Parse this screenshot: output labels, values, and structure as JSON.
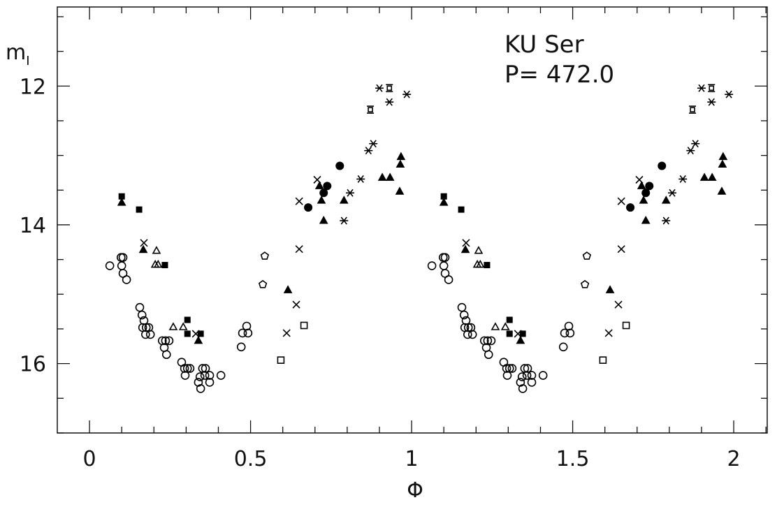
{
  "chart_data": {
    "type": "scatter",
    "title": "",
    "annotations": [
      "KU Ser",
      "P= 472.0"
    ],
    "xlabel": "Φ",
    "ylabel": "m",
    "ylabel_sub": "I",
    "xlim": [
      -0.1,
      2.104
    ],
    "ylim": [
      10.86,
      17.0
    ],
    "y_inverted": true,
    "x_ticks": [
      0,
      0.5,
      1,
      1.5,
      2
    ],
    "x_tick_labels": [
      "0",
      "0.5",
      "1",
      "1.5",
      "2"
    ],
    "y_ticks": [
      12,
      14,
      16
    ],
    "y_tick_labels": [
      "12",
      "14",
      "16"
    ],
    "x_minor_step": 0.1,
    "y_minor_step": 0.5,
    "grid": false,
    "phase_repeat": [
      0,
      1
    ],
    "series": [
      {
        "name": "open-circle",
        "marker": "circle-open",
        "points": [
          [
            0.063,
            14.59
          ],
          [
            0.098,
            14.47
          ],
          [
            0.104,
            14.47
          ],
          [
            0.1,
            14.59
          ],
          [
            0.104,
            14.7
          ],
          [
            0.115,
            14.79
          ],
          [
            0.156,
            15.19
          ],
          [
            0.163,
            15.3
          ],
          [
            0.169,
            15.38
          ],
          [
            0.165,
            15.48
          ],
          [
            0.176,
            15.48
          ],
          [
            0.184,
            15.48
          ],
          [
            0.174,
            15.58
          ],
          [
            0.189,
            15.58
          ],
          [
            0.226,
            15.67
          ],
          [
            0.236,
            15.67
          ],
          [
            0.247,
            15.67
          ],
          [
            0.232,
            15.77
          ],
          [
            0.239,
            15.87
          ],
          [
            0.286,
            15.98
          ],
          [
            0.295,
            16.07
          ],
          [
            0.304,
            16.07
          ],
          [
            0.312,
            16.07
          ],
          [
            0.297,
            16.17
          ],
          [
            0.343,
            16.19
          ],
          [
            0.351,
            16.07
          ],
          [
            0.36,
            16.07
          ],
          [
            0.358,
            16.17
          ],
          [
            0.373,
            16.17
          ],
          [
            0.338,
            16.27
          ],
          [
            0.345,
            16.36
          ],
          [
            0.373,
            16.27
          ],
          [
            0.408,
            16.17
          ],
          [
            0.488,
            15.46
          ],
          [
            0.475,
            15.56
          ],
          [
            0.492,
            15.56
          ],
          [
            0.471,
            15.76
          ]
        ]
      },
      {
        "name": "open-triangle",
        "marker": "triangle-open",
        "points": [
          [
            0.208,
            14.37
          ],
          [
            0.204,
            14.57
          ],
          [
            0.213,
            14.57
          ],
          [
            0.26,
            15.47
          ],
          [
            0.291,
            15.47
          ]
        ]
      },
      {
        "name": "filled-square",
        "marker": "square-filled",
        "points": [
          [
            0.1,
            13.59
          ],
          [
            0.154,
            13.78
          ],
          [
            0.234,
            14.58
          ],
          [
            0.304,
            15.37
          ],
          [
            0.304,
            15.57
          ],
          [
            0.345,
            15.57
          ]
        ]
      },
      {
        "name": "filled-triangle",
        "marker": "triangle-filled",
        "points": [
          [
            0.1,
            13.68
          ],
          [
            0.167,
            14.36
          ],
          [
            0.338,
            15.67
          ],
          [
            0.616,
            14.94
          ],
          [
            0.727,
            13.94
          ],
          [
            0.72,
            13.65
          ],
          [
            0.79,
            13.65
          ],
          [
            0.909,
            13.32
          ],
          [
            0.933,
            13.32
          ],
          [
            0.967,
            13.02
          ],
          [
            0.965,
            13.13
          ],
          [
            0.963,
            13.52
          ],
          [
            0.714,
            13.44
          ]
        ]
      },
      {
        "name": "filled-circle",
        "marker": "circle-filled",
        "points": [
          [
            0.777,
            13.15
          ],
          [
            0.738,
            13.44
          ],
          [
            0.727,
            13.54
          ],
          [
            0.679,
            13.75
          ]
        ]
      },
      {
        "name": "cross",
        "marker": "x",
        "points": [
          [
            0.707,
            13.35
          ],
          [
            0.651,
            13.66
          ],
          [
            0.651,
            14.35
          ],
          [
            0.642,
            15.15
          ],
          [
            0.612,
            15.56
          ],
          [
            0.169,
            14.26
          ],
          [
            0.33,
            15.57
          ]
        ]
      },
      {
        "name": "asterisk",
        "marker": "asterisk",
        "points": [
          [
            0.9,
            12.03
          ],
          [
            0.931,
            12.23
          ],
          [
            0.985,
            12.12
          ],
          [
            0.881,
            12.83
          ],
          [
            0.866,
            12.93
          ],
          [
            0.842,
            13.34
          ],
          [
            0.809,
            13.54
          ],
          [
            0.79,
            13.94
          ]
        ]
      },
      {
        "name": "star-square",
        "marker": "star-square",
        "points": [
          [
            0.931,
            12.03
          ],
          [
            0.872,
            12.34
          ]
        ]
      },
      {
        "name": "open-pentagon",
        "marker": "pentagon-open",
        "points": [
          [
            0.544,
            14.45
          ],
          [
            0.538,
            14.86
          ]
        ]
      },
      {
        "name": "open-square",
        "marker": "square-open",
        "points": [
          [
            0.666,
            15.45
          ],
          [
            0.594,
            15.95
          ]
        ]
      }
    ]
  }
}
